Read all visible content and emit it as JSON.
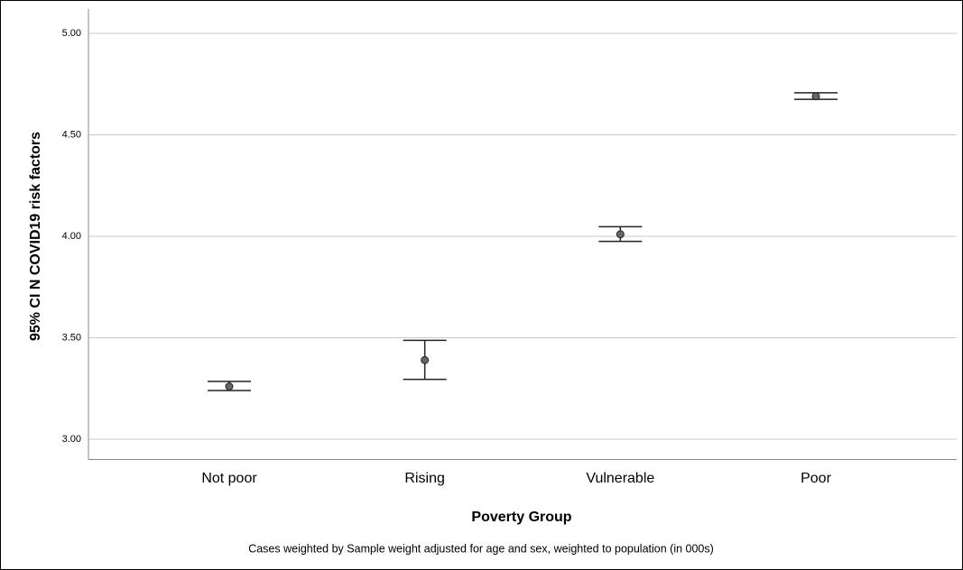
{
  "chart_data": {
    "type": "errorbar",
    "categories": [
      "Not poor",
      "Rising",
      "Vulnerable",
      "Poor"
    ],
    "values": [
      3.26,
      3.39,
      4.01,
      4.69
    ],
    "lower": [
      3.24,
      3.295,
      3.975,
      4.675
    ],
    "upper": [
      3.285,
      3.487,
      4.047,
      4.707
    ],
    "color": "#666666",
    "xlabel": "Poverty Group",
    "ylabel": "95% CI N COVID19 risk factors",
    "footnote": "Cases weighted by Sample weight adjusted for age and sex, weighted to population (in 000s)",
    "ylim": [
      2.9,
      5.1
    ],
    "yticks": [
      {
        "value": 3,
        "label": "3.00"
      },
      {
        "value": 3.5,
        "label": "3.50"
      },
      {
        "value": 4,
        "label": "4.00"
      },
      {
        "value": 4.5,
        "label": "4.50"
      },
      {
        "value": 5,
        "label": "5.00"
      }
    ],
    "grid": true
  }
}
